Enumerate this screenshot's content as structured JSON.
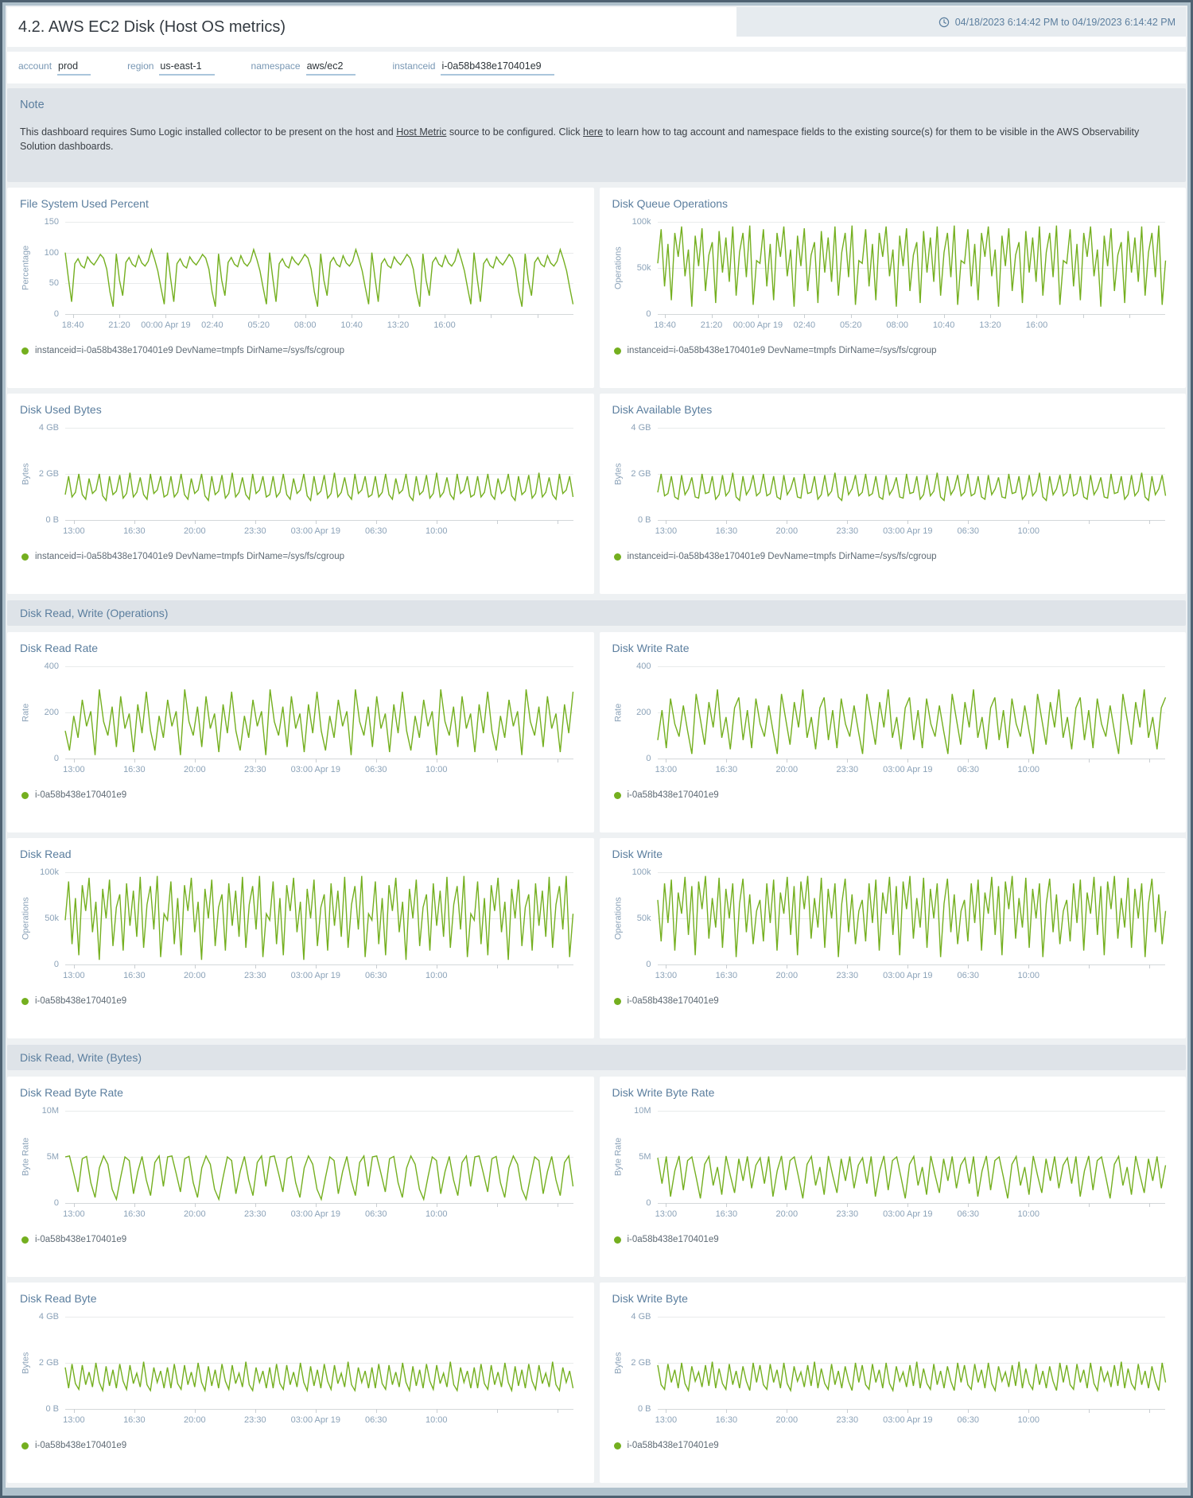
{
  "header": {
    "title": "4.2. AWS EC2 Disk (Host OS metrics)",
    "time_range": "04/18/2023 6:14:42 PM to 04/19/2023 6:14:42 PM"
  },
  "filters": [
    {
      "label": "account",
      "value": "prod"
    },
    {
      "label": "region",
      "value": "us-east-1"
    },
    {
      "label": "namespace",
      "value": "aws/ec2"
    },
    {
      "label": "instanceid",
      "value": "i-0a58b438e170401e9"
    }
  ],
  "note": {
    "title": "Note",
    "text_before": "This dashboard requires Sumo Logic installed collector to be present on the host and ",
    "link1": "Host Metric",
    "text_mid": " source to be configured. Click ",
    "link2": "here",
    "text_after": " to learn how to tag account and namespace fields to the existing source(s) for them to be visible in the AWS Observability Solution dashboards."
  },
  "sections": [
    {
      "title": "Disk Read, Write (Operations)"
    },
    {
      "title": "Disk Read, Write (Bytes)"
    }
  ],
  "colors": {
    "line": "#74af1f",
    "accent": "#5b7e9e"
  },
  "legends": {
    "long": "instanceid=i-0a58b438e170401e9 DevName=tmpfs DirName=/sys/fs/cgroup",
    "short": "i-0a58b438e170401e9"
  },
  "xgroups": {
    "a": {
      "labels": [
        "18:40",
        "21:20",
        "00:00 Apr 19",
        "02:40",
        "05:20",
        "08:00",
        "10:40",
        "13:20",
        "16:00"
      ],
      "start": 0.015,
      "step": 0.0915
    },
    "b": {
      "labels": [
        "13:00",
        "16:30",
        "20:00",
        "23:30",
        "03:00 Apr 19",
        "06:30",
        "10:00"
      ],
      "start": 0.017,
      "step": 0.119
    }
  },
  "charts": [
    {
      "title": "File System Used Percent",
      "ylabel": "Percentage",
      "legend": "instanceid=i-0a58b438e170401e9 DevName=tmpfs DirName=/sys/fs/cgroup",
      "chart_data": {
        "type": "line",
        "unit": "percent",
        "ylim": [
          0,
          150
        ],
        "ymax": 150,
        "yticks": [
          "150",
          "100",
          "50",
          "0"
        ],
        "xgroup": "a",
        "repeat": 5,
        "pattern": [
          100,
          58,
          20,
          82,
          90,
          79,
          75,
          93,
          85,
          80,
          88,
          97,
          91,
          73,
          36,
          12,
          98,
          55,
          30,
          84,
          92,
          81,
          77,
          95,
          83,
          78,
          86,
          105,
          89,
          70,
          42,
          16
        ]
      }
    },
    {
      "title": "Disk Queue Operations",
      "ylabel": "Operations",
      "legend": "instanceid=i-0a58b438e170401e9 DevName=tmpfs DirName=/sys/fs/cgroup",
      "chart_data": {
        "type": "line",
        "unit": "k operations",
        "ylim": [
          0,
          100000
        ],
        "ymax": 100,
        "yticks": [
          "100k",
          "50k",
          "0"
        ],
        "xgroup": "a",
        "repeat": 5,
        "pattern": [
          55,
          92,
          30,
          76,
          15,
          88,
          62,
          95,
          41,
          70,
          8,
          85,
          52,
          93,
          25,
          64,
          78,
          12,
          90,
          45,
          83,
          35,
          95,
          20,
          67,
          88,
          40,
          96,
          10,
          58
        ]
      }
    },
    {
      "title": "Disk Used Bytes",
      "ylabel": "Bytes",
      "legend": "instanceid=i-0a58b438e170401e9 DevName=tmpfs DirName=/sys/fs/cgroup",
      "chart_data": {
        "type": "line",
        "unit": "GB",
        "ylim": [
          0,
          4
        ],
        "ymax": 4,
        "yticks": [
          "4 GB",
          "2 GB",
          "0 B"
        ],
        "xgroup": "b",
        "repeat": 5,
        "pattern": [
          1.1,
          1.9,
          1.0,
          1.2,
          2.0,
          1.1,
          0.9,
          1.8,
          1.15,
          1.3,
          2.0,
          1.05,
          0.85,
          1.9,
          1.1,
          1.25,
          1.95,
          0.95,
          1.15,
          2.05,
          1.0,
          1.2,
          1.85,
          1.1,
          0.9,
          2.0,
          1.15,
          1.3,
          1.9,
          1.0
        ]
      }
    },
    {
      "title": "Disk Available Bytes",
      "ylabel": "Bytes",
      "legend": "instanceid=i-0a58b438e170401e9 DevName=tmpfs DirName=/sys/fs/cgroup",
      "chart_data": {
        "type": "line",
        "unit": "GB",
        "ylim": [
          0,
          4
        ],
        "ymax": 4,
        "yticks": [
          "4 GB",
          "2 GB",
          "0 B"
        ],
        "xgroup": "b",
        "repeat": 5,
        "pattern": [
          1.2,
          2.0,
          1.05,
          1.15,
          1.9,
          1.0,
          0.9,
          1.95,
          1.1,
          1.35,
          1.85,
          1.0,
          0.95,
          2.0,
          1.15,
          1.2,
          1.9,
          0.9,
          1.1,
          1.95,
          1.05,
          1.25,
          2.05,
          1.0,
          0.85,
          1.9,
          1.1,
          1.35,
          1.95,
          1.05
        ]
      }
    },
    {
      "title": "Disk Read Rate",
      "ylabel": "Rate",
      "legend": "i-0a58b438e170401e9",
      "chart_data": {
        "type": "line",
        "unit": "operations/s",
        "ylim": [
          0,
          400
        ],
        "ymax": 400,
        "yticks": [
          "400",
          "200",
          "0"
        ],
        "xgroup": "b",
        "repeat": 6,
        "pattern": [
          120,
          35,
          185,
          90,
          255,
          140,
          205,
          15,
          300,
          160,
          100,
          225,
          50,
          270,
          130,
          195,
          28,
          235,
          110,
          290
        ]
      }
    },
    {
      "title": "Disk Write Rate",
      "ylabel": "Rate",
      "legend": "i-0a58b438e170401e9",
      "chart_data": {
        "type": "line",
        "unit": "operations/s",
        "ylim": [
          0,
          400
        ],
        "ymax": 400,
        "yticks": [
          "400",
          "200",
          "0"
        ],
        "xgroup": "b",
        "repeat": 6,
        "pattern": [
          80,
          210,
          45,
          260,
          150,
          95,
          230,
          120,
          20,
          280,
          170,
          60,
          245,
          135,
          300,
          90,
          180,
          40,
          220,
          265
        ]
      }
    },
    {
      "title": "Disk Read",
      "ylabel": "Operations",
      "legend": "i-0a58b438e170401e9",
      "chart_data": {
        "type": "line",
        "unit": "k operations",
        "ylim": [
          0,
          100000
        ],
        "ymax": 100,
        "yticks": [
          "100k",
          "50k",
          "0"
        ],
        "xgroup": "b",
        "repeat": 5,
        "pattern": [
          48,
          90,
          22,
          72,
          10,
          86,
          58,
          94,
          35,
          68,
          5,
          82,
          50,
          92,
          20,
          62,
          76,
          15,
          88,
          42,
          80,
          30,
          95,
          18,
          65,
          85,
          38,
          96,
          8,
          55
        ]
      }
    },
    {
      "title": "Disk Write",
      "ylabel": "Operations",
      "legend": "i-0a58b438e170401e9",
      "chart_data": {
        "type": "line",
        "unit": "k operations",
        "ylim": [
          0,
          100000
        ],
        "ymax": 100,
        "yticks": [
          "100k",
          "50k",
          "0"
        ],
        "xgroup": "b",
        "repeat": 5,
        "pattern": [
          70,
          25,
          88,
          45,
          92,
          15,
          78,
          55,
          95,
          32,
          85,
          10,
          90,
          60,
          96,
          28,
          72,
          40,
          94,
          18,
          82,
          50,
          88,
          8,
          66,
          93,
          35,
          76,
          22,
          58
        ]
      }
    },
    {
      "title": "Disk Read Byte Rate",
      "ylabel": "Byte Rate",
      "legend": "i-0a58b438e170401e9",
      "chart_data": {
        "type": "line",
        "unit": "MB/s",
        "ylim": [
          0,
          10
        ],
        "ymax": 10,
        "yticks": [
          "10M",
          "5M",
          "0"
        ],
        "xgroup": "b",
        "repeat": 5,
        "pattern": [
          5,
          5.1,
          3.2,
          1.2,
          4.8,
          5.05,
          2.2,
          0.6,
          3.8,
          5.1,
          4.2,
          1.5,
          0.4,
          2.8,
          5,
          4.6,
          1,
          3.4,
          5.05,
          2.5,
          0.8,
          4.4,
          5.1,
          1.8
        ]
      }
    },
    {
      "title": "Disk Write Byte Rate",
      "ylabel": "Byte Rate",
      "legend": "i-0a58b438e170401e9",
      "chart_data": {
        "type": "line",
        "unit": "MB/s",
        "ylim": [
          0,
          10
        ],
        "ymax": 10,
        "yticks": [
          "10M",
          "5M",
          "0"
        ],
        "xgroup": "b",
        "repeat": 5,
        "pattern": [
          4.9,
          2.1,
          5.05,
          0.7,
          3.5,
          5.1,
          1.4,
          4.6,
          5,
          2.8,
          0.5,
          4.2,
          5.05,
          1.9,
          3.9,
          0.9,
          5.1,
          3,
          1.1,
          4.8,
          2.4,
          5.05,
          1.6,
          4.1
        ]
      }
    },
    {
      "title": "Disk Read Byte",
      "ylabel": "Bytes",
      "legend": "i-0a58b438e170401e9",
      "chart_data": {
        "type": "line",
        "unit": "GB",
        "ylim": [
          0,
          4
        ],
        "ymax": 4,
        "yticks": [
          "4 GB",
          "2 GB",
          "0 B"
        ],
        "xgroup": "b",
        "repeat": 5,
        "pattern": [
          1.8,
          0.9,
          1.95,
          1.1,
          0.85,
          1.9,
          1.05,
          1.6,
          0.95,
          2.0,
          1.15,
          0.8,
          1.85,
          1.0,
          1.7,
          0.9,
          1.95,
          1.2,
          0.85,
          1.9,
          1.1,
          1.55,
          0.95,
          2.05,
          1.05,
          0.8,
          1.8,
          1.15,
          1.65,
          0.9
        ]
      }
    },
    {
      "title": "Disk Write Byte",
      "ylabel": "Bytes",
      "legend": "i-0a58b438e170401e9",
      "chart_data": {
        "type": "line",
        "unit": "GB",
        "ylim": [
          0,
          4
        ],
        "ymax": 4,
        "yticks": [
          "4 GB",
          "2 GB",
          "0 B"
        ],
        "xgroup": "b",
        "repeat": 5,
        "pattern": [
          1.9,
          1.05,
          0.85,
          1.95,
          1.15,
          1.7,
          0.9,
          2.0,
          1.1,
          0.8,
          1.85,
          1.2,
          1.6,
          0.95,
          1.9,
          1.0,
          2.05,
          0.9,
          1.75,
          1.1,
          0.85,
          1.95,
          1.05,
          1.65,
          0.9,
          1.85,
          1.2,
          0.8,
          2.0,
          1.15
        ]
      }
    }
  ]
}
